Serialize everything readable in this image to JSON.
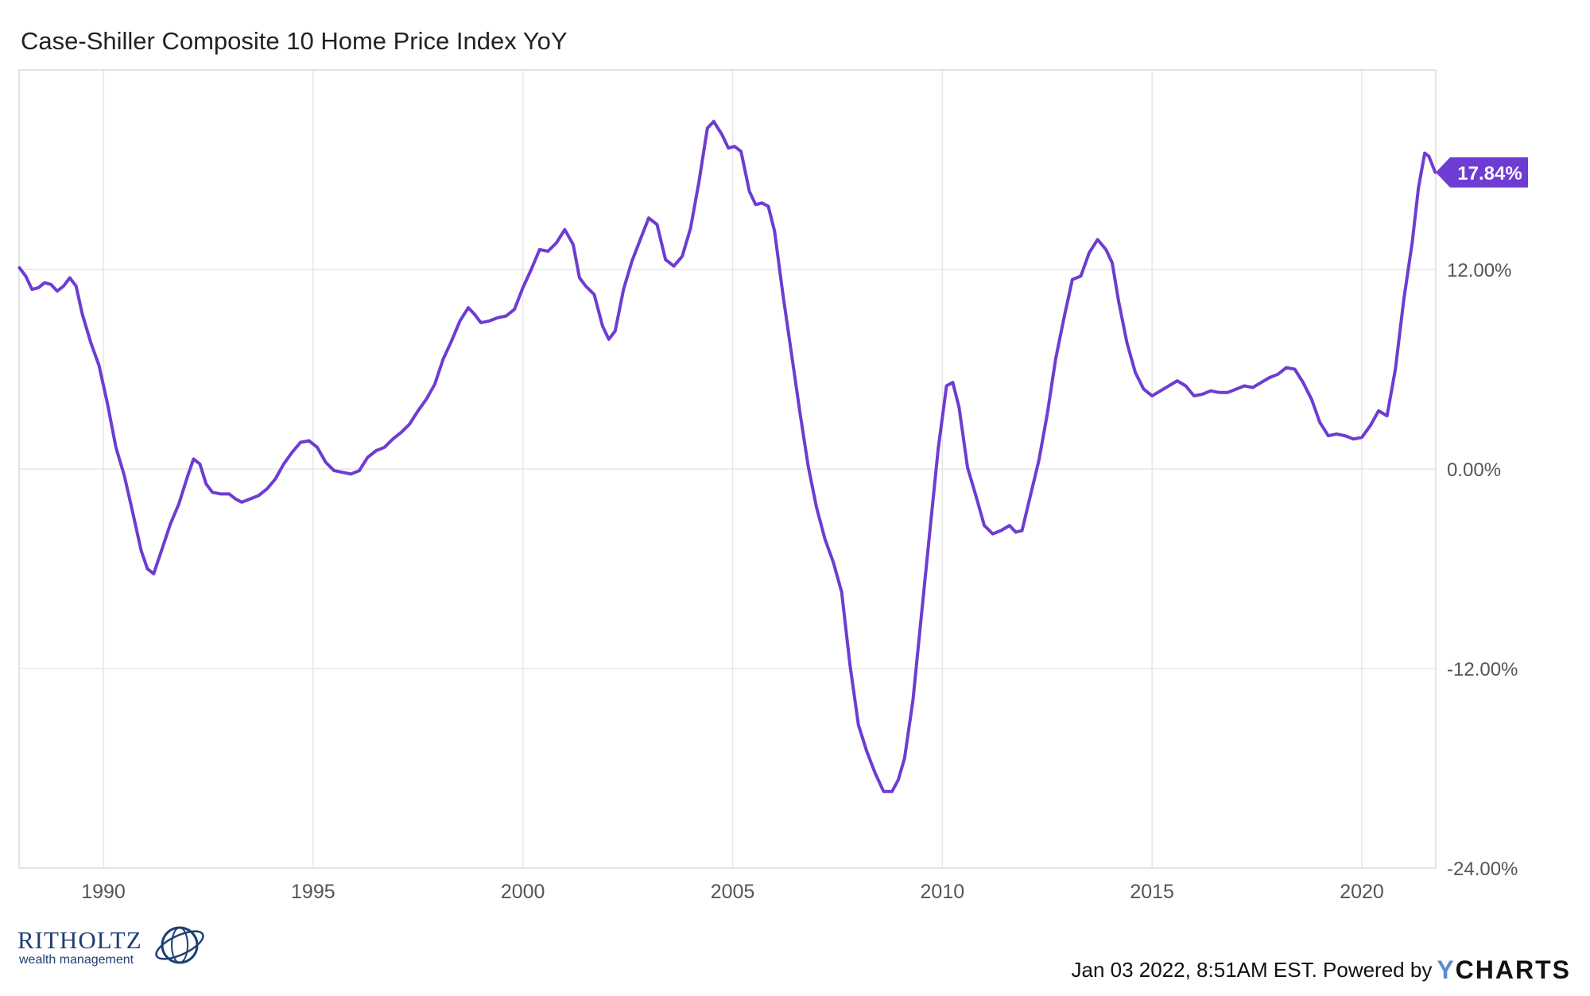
{
  "title": "Case-Shiller Composite 10 Home Price Index YoY",
  "footer": {
    "timestamp_text": "Jan 03 2022, 8:51AM EST. Powered by",
    "brand_y": "Y",
    "brand_rest": "CHARTS"
  },
  "logo": {
    "name": "RITHOLTZ",
    "subtitle": "wealth management"
  },
  "colors": {
    "line": "#6e3cd2",
    "grid": "#e6e6e6",
    "label_bg": "#6e3cd2"
  },
  "chart_data": {
    "type": "line",
    "title": "Case-Shiller Composite 10 Home Price Index YoY",
    "xlabel": "",
    "ylabel": "",
    "xlim": [
      1988.0,
      2021.75
    ],
    "ylim": [
      -24,
      24
    ],
    "x_ticks": [
      {
        "value": 1990,
        "label": "1990"
      },
      {
        "value": 1995,
        "label": "1995"
      },
      {
        "value": 2000,
        "label": "2000"
      },
      {
        "value": 2005,
        "label": "2005"
      },
      {
        "value": 2010,
        "label": "2010"
      },
      {
        "value": 2015,
        "label": "2015"
      },
      {
        "value": 2020,
        "label": "2020"
      }
    ],
    "y_ticks": [
      {
        "value": 12,
        "label": "12.00%"
      },
      {
        "value": 0,
        "label": "0.00%"
      },
      {
        "value": -12,
        "label": "-12.00%"
      },
      {
        "value": -24,
        "label": "-24.00%"
      }
    ],
    "grid": true,
    "last_value_label": "17.84%",
    "series": [
      {
        "color": "#6e3cd2",
        "points": [
          [
            1988.0,
            12.1
          ],
          [
            1988.15,
            11.6
          ],
          [
            1988.3,
            10.8
          ],
          [
            1988.45,
            10.9
          ],
          [
            1988.6,
            11.2
          ],
          [
            1988.75,
            11.1
          ],
          [
            1988.9,
            10.7
          ],
          [
            1989.05,
            11.0
          ],
          [
            1989.2,
            11.5
          ],
          [
            1989.35,
            11.0
          ],
          [
            1989.5,
            9.3
          ],
          [
            1989.7,
            7.6
          ],
          [
            1989.9,
            6.2
          ],
          [
            1990.1,
            3.9
          ],
          [
            1990.3,
            1.3
          ],
          [
            1990.5,
            -0.4
          ],
          [
            1990.7,
            -2.6
          ],
          [
            1990.9,
            -4.9
          ],
          [
            1991.05,
            -6.0
          ],
          [
            1991.2,
            -6.3
          ],
          [
            1991.4,
            -4.8
          ],
          [
            1991.6,
            -3.3
          ],
          [
            1991.8,
            -2.1
          ],
          [
            1992.0,
            -0.5
          ],
          [
            1992.15,
            0.6
          ],
          [
            1992.3,
            0.3
          ],
          [
            1992.45,
            -0.9
          ],
          [
            1992.6,
            -1.4
          ],
          [
            1992.8,
            -1.5
          ],
          [
            1993.0,
            -1.5
          ],
          [
            1993.15,
            -1.8
          ],
          [
            1993.3,
            -2.0
          ],
          [
            1993.5,
            -1.8
          ],
          [
            1993.7,
            -1.6
          ],
          [
            1993.9,
            -1.2
          ],
          [
            1994.1,
            -0.6
          ],
          [
            1994.3,
            0.3
          ],
          [
            1994.5,
            1.0
          ],
          [
            1994.7,
            1.6
          ],
          [
            1994.9,
            1.7
          ],
          [
            1995.1,
            1.3
          ],
          [
            1995.3,
            0.4
          ],
          [
            1995.5,
            -0.1
          ],
          [
            1995.7,
            -0.2
          ],
          [
            1995.9,
            -0.3
          ],
          [
            1996.1,
            -0.1
          ],
          [
            1996.3,
            0.7
          ],
          [
            1996.5,
            1.1
          ],
          [
            1996.7,
            1.3
          ],
          [
            1996.9,
            1.8
          ],
          [
            1997.1,
            2.2
          ],
          [
            1997.3,
            2.7
          ],
          [
            1997.5,
            3.5
          ],
          [
            1997.7,
            4.2
          ],
          [
            1997.9,
            5.1
          ],
          [
            1998.1,
            6.6
          ],
          [
            1998.3,
            7.7
          ],
          [
            1998.5,
            8.9
          ],
          [
            1998.7,
            9.7
          ],
          [
            1998.85,
            9.3
          ],
          [
            1999.0,
            8.8
          ],
          [
            1999.2,
            8.9
          ],
          [
            1999.4,
            9.1
          ],
          [
            1999.6,
            9.2
          ],
          [
            1999.8,
            9.6
          ],
          [
            2000.0,
            10.9
          ],
          [
            2000.2,
            12.0
          ],
          [
            2000.4,
            13.2
          ],
          [
            2000.6,
            13.1
          ],
          [
            2000.8,
            13.6
          ],
          [
            2001.0,
            14.4
          ],
          [
            2001.2,
            13.5
          ],
          [
            2001.35,
            11.5
          ],
          [
            2001.5,
            11.0
          ],
          [
            2001.7,
            10.5
          ],
          [
            2001.9,
            8.6
          ],
          [
            2002.05,
            7.8
          ],
          [
            2002.2,
            8.3
          ],
          [
            2002.4,
            10.8
          ],
          [
            2002.6,
            12.5
          ],
          [
            2002.8,
            13.8
          ],
          [
            2003.0,
            15.1
          ],
          [
            2003.2,
            14.7
          ],
          [
            2003.4,
            12.6
          ],
          [
            2003.6,
            12.2
          ],
          [
            2003.8,
            12.8
          ],
          [
            2004.0,
            14.5
          ],
          [
            2004.2,
            17.3
          ],
          [
            2004.4,
            20.5
          ],
          [
            2004.55,
            20.9
          ],
          [
            2004.75,
            20.1
          ],
          [
            2004.9,
            19.3
          ],
          [
            2005.05,
            19.4
          ],
          [
            2005.2,
            19.1
          ],
          [
            2005.4,
            16.7
          ],
          [
            2005.55,
            15.9
          ],
          [
            2005.7,
            16.0
          ],
          [
            2005.85,
            15.8
          ],
          [
            2006.0,
            14.3
          ],
          [
            2006.2,
            10.5
          ],
          [
            2006.4,
            7.0
          ],
          [
            2006.6,
            3.5
          ],
          [
            2006.8,
            0.2
          ],
          [
            2007.0,
            -2.3
          ],
          [
            2007.2,
            -4.2
          ],
          [
            2007.4,
            -5.6
          ],
          [
            2007.6,
            -7.4
          ],
          [
            2007.8,
            -11.8
          ],
          [
            2008.0,
            -15.4
          ],
          [
            2008.2,
            -17.0
          ],
          [
            2008.4,
            -18.3
          ],
          [
            2008.6,
            -19.4
          ],
          [
            2008.8,
            -19.4
          ],
          [
            2008.95,
            -18.7
          ],
          [
            2009.1,
            -17.4
          ],
          [
            2009.3,
            -13.9
          ],
          [
            2009.5,
            -8.8
          ],
          [
            2009.7,
            -3.8
          ],
          [
            2009.9,
            1.2
          ],
          [
            2010.1,
            5.0
          ],
          [
            2010.25,
            5.2
          ],
          [
            2010.4,
            3.7
          ],
          [
            2010.6,
            0.1
          ],
          [
            2010.8,
            -1.6
          ],
          [
            2011.0,
            -3.4
          ],
          [
            2011.2,
            -3.9
          ],
          [
            2011.4,
            -3.7
          ],
          [
            2011.6,
            -3.4
          ],
          [
            2011.75,
            -3.8
          ],
          [
            2011.9,
            -3.7
          ],
          [
            2012.1,
            -1.6
          ],
          [
            2012.3,
            0.5
          ],
          [
            2012.5,
            3.3
          ],
          [
            2012.7,
            6.6
          ],
          [
            2012.9,
            9.1
          ],
          [
            2013.1,
            11.4
          ],
          [
            2013.3,
            11.6
          ],
          [
            2013.5,
            13.0
          ],
          [
            2013.7,
            13.8
          ],
          [
            2013.9,
            13.2
          ],
          [
            2014.05,
            12.4
          ],
          [
            2014.2,
            10.1
          ],
          [
            2014.4,
            7.6
          ],
          [
            2014.6,
            5.8
          ],
          [
            2014.8,
            4.8
          ],
          [
            2015.0,
            4.4
          ],
          [
            2015.2,
            4.7
          ],
          [
            2015.4,
            5.0
          ],
          [
            2015.6,
            5.3
          ],
          [
            2015.8,
            5.0
          ],
          [
            2016.0,
            4.4
          ],
          [
            2016.2,
            4.5
          ],
          [
            2016.4,
            4.7
          ],
          [
            2016.6,
            4.6
          ],
          [
            2016.8,
            4.6
          ],
          [
            2017.0,
            4.8
          ],
          [
            2017.2,
            5.0
          ],
          [
            2017.4,
            4.9
          ],
          [
            2017.6,
            5.2
          ],
          [
            2017.8,
            5.5
          ],
          [
            2018.0,
            5.7
          ],
          [
            2018.2,
            6.1
          ],
          [
            2018.4,
            6.0
          ],
          [
            2018.6,
            5.2
          ],
          [
            2018.8,
            4.2
          ],
          [
            2019.0,
            2.8
          ],
          [
            2019.2,
            2.0
          ],
          [
            2019.4,
            2.1
          ],
          [
            2019.6,
            2.0
          ],
          [
            2019.8,
            1.8
          ],
          [
            2020.0,
            1.9
          ],
          [
            2020.2,
            2.6
          ],
          [
            2020.4,
            3.5
          ],
          [
            2020.6,
            3.2
          ],
          [
            2020.8,
            6.0
          ],
          [
            2021.0,
            10.2
          ],
          [
            2021.2,
            13.6
          ],
          [
            2021.35,
            16.9
          ],
          [
            2021.5,
            19.0
          ],
          [
            2021.6,
            18.8
          ],
          [
            2021.75,
            17.84
          ]
        ]
      }
    ]
  }
}
